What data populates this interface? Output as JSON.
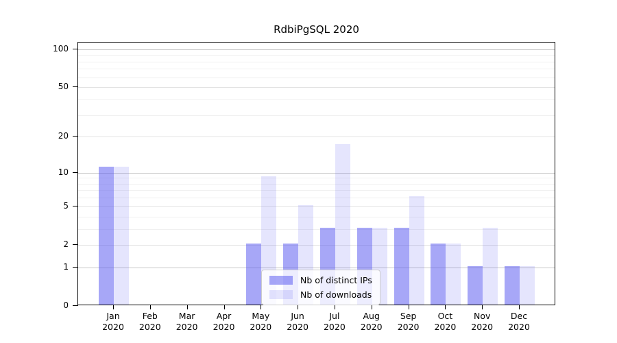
{
  "figure": {
    "title": "RdbiPgSQL 2020"
  },
  "chart_data": {
    "type": "bar",
    "title": "RdbiPgSQL 2020",
    "categories": [
      "Jan",
      "Feb",
      "Mar",
      "Apr",
      "May",
      "Jun",
      "Jul",
      "Aug",
      "Sep",
      "Oct",
      "Nov",
      "Dec"
    ],
    "x_tick_year": "2020",
    "series": [
      {
        "name": "Nb of distinct IPs",
        "color": "rgba(80,80,240,0.5)",
        "color_hex_on_white": "#a8a8f8",
        "values": [
          11,
          0,
          0,
          0,
          2,
          2,
          3,
          3,
          3,
          2,
          1,
          1
        ]
      },
      {
        "name": "Nb of downloads",
        "color": "rgba(80,80,240,0.15)",
        "color_hex_on_white": "#d9d9fa",
        "values": [
          11,
          0,
          0,
          0,
          9,
          5,
          17,
          3,
          6,
          2,
          3,
          1
        ]
      }
    ],
    "xlabel": "",
    "ylabel": "",
    "yscale": "log1p",
    "ylim": [
      0,
      113
    ],
    "yticks": [
      0,
      1,
      2,
      5,
      10,
      20,
      50,
      100
    ],
    "minor_yticks": [
      3,
      4,
      6,
      7,
      8,
      9,
      30,
      40,
      60,
      70,
      80,
      90
    ],
    "emphasized_gridlines": [
      1,
      10,
      100
    ],
    "grid": true,
    "legend_position": "lower-center-left"
  },
  "colors": {
    "background": "#ffffff",
    "axis": "#000000",
    "grid_major": "#c6c6c6",
    "grid_mid": "#e3e3e3",
    "grid_minor": "#f0f0f0",
    "bar_distinct_ips": "#a8a8f8",
    "bar_downloads": "#d9d9fa"
  }
}
